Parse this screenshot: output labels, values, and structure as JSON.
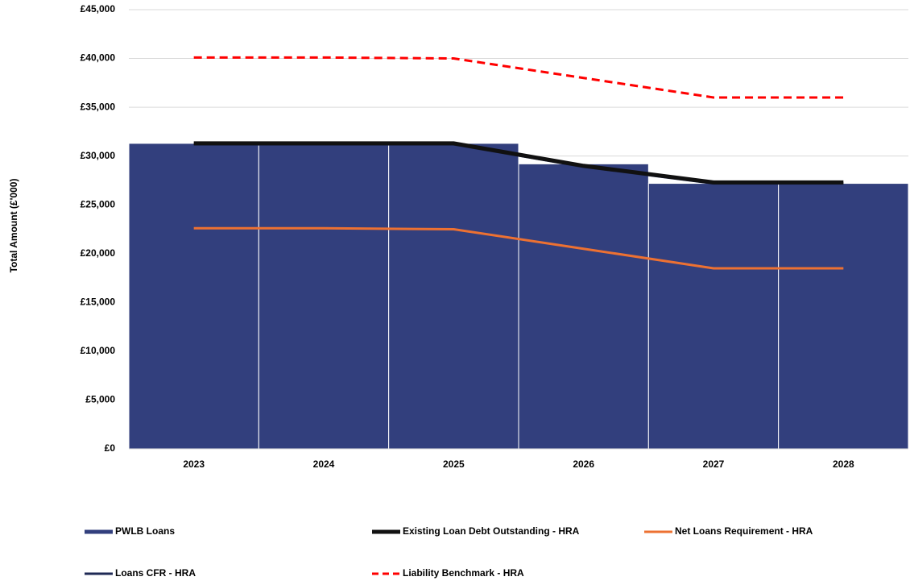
{
  "chart_data": {
    "type": "bar_line",
    "y_label": "Total Amount (£'000)",
    "categories": [
      "2023",
      "2024",
      "2025",
      "2026",
      "2027",
      "2028"
    ],
    "series": [
      {
        "name": "PWLB Loans",
        "kind": "bar",
        "color": "#323f7d",
        "values": [
          31300,
          31300,
          31300,
          29200,
          27200,
          27200
        ]
      },
      {
        "name": "Existing Loan Debt Outstanding - HRA",
        "kind": "line",
        "color": "#111111",
        "values": [
          31300,
          31300,
          31300,
          29000,
          27300,
          27300
        ]
      },
      {
        "name": "Net Loans Requirement - HRA",
        "kind": "line",
        "color": "#ed7132",
        "values": [
          22600,
          22600,
          22500,
          20500,
          18500,
          18500
        ]
      },
      {
        "name": "Loans CFR - HRA",
        "kind": "line",
        "color": "#1f2a55",
        "values": [
          31200,
          31200,
          31200,
          28900,
          27200,
          27200
        ]
      },
      {
        "name": "Liability Benchmark - HRA",
        "kind": "line",
        "color": "#ff0000",
        "dashed": true,
        "values": [
          40100,
          40100,
          40000,
          38000,
          36000,
          36000
        ]
      }
    ],
    "ylim": [
      0,
      45000
    ],
    "yticks": [
      {
        "value": 0,
        "label": "£0"
      },
      {
        "value": 5000,
        "label": "£5,000"
      },
      {
        "value": 10000,
        "label": "£10,000"
      },
      {
        "value": 15000,
        "label": "£15,000"
      },
      {
        "value": 20000,
        "label": "£20,000"
      },
      {
        "value": 25000,
        "label": "£25,000"
      },
      {
        "value": 30000,
        "label": "£30,000"
      },
      {
        "value": 35000,
        "label": "£35,000"
      },
      {
        "value": 40000,
        "label": "£40,000"
      },
      {
        "value": 45000,
        "label": "£45,000"
      }
    ],
    "grid": true
  }
}
